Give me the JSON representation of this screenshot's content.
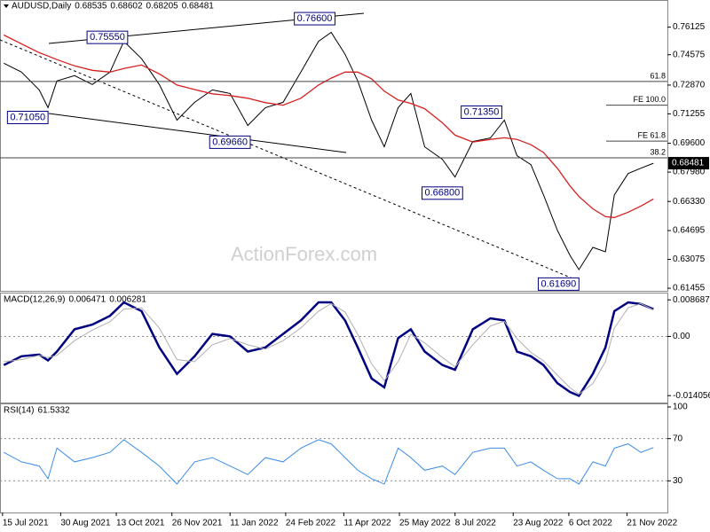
{
  "chart_data": [
    {
      "type": "line",
      "title": "AUDUSD,Daily",
      "open": 0.68535,
      "high": 0.68602,
      "low": 0.68205,
      "close": 0.68481,
      "watermark": "ActionForex.com",
      "x": [
        "2021-07-16",
        "2021-07-30",
        "2021-08-13",
        "2021-08-20",
        "2021-08-27",
        "2021-09-10",
        "2021-09-24",
        "2021-10-08",
        "2021-10-19",
        "2021-11-02",
        "2021-11-16",
        "2021-11-30",
        "2021-12-14",
        "2021-12-28",
        "2022-01-11",
        "2022-01-25",
        "2022-02-08",
        "2022-02-22",
        "2022-03-08",
        "2022-03-22",
        "2022-04-01",
        "2022-04-12",
        "2022-04-22",
        "2022-05-03",
        "2022-05-13",
        "2022-05-24",
        "2022-06-03",
        "2022-06-14",
        "2022-06-28",
        "2022-07-08",
        "2022-07-22",
        "2022-08-05",
        "2022-08-16",
        "2022-08-26",
        "2022-09-06",
        "2022-09-16",
        "2022-09-27",
        "2022-10-07",
        "2022-10-14",
        "2022-10-25",
        "2022-11-04",
        "2022-11-11",
        "2022-11-22",
        "2022-12-02",
        "2022-12-12"
      ],
      "xlim": [
        "2021-07-13",
        "2022-12-23"
      ],
      "xticks": [
        "15 Jul 2021",
        "30 Aug 2021",
        "13 Oct 2021",
        "26 Nov 2021",
        "11 Jan 2022",
        "24 Feb 2022",
        "11 Apr 2022",
        "25 May 2022",
        "8 Jul 2022",
        "23 Aug 2022",
        "6 Oct 2022",
        "21 Nov 2022"
      ],
      "ylim": [
        0.6131,
        0.7755
      ],
      "yticks": [
        0.76125,
        0.74575,
        {
          "value": 0.7287,
          "label": "0.72870"
        },
        0.71255,
        {
          "value": 0.696,
          "label": "0.69600"
        },
        {
          "value": 0.6798,
          "label": "0.67980"
        },
        {
          "value": 0.6633,
          "label": "0.66330"
        },
        0.64695,
        0.63075,
        0.61455
      ],
      "series": [
        {
          "color": "#000000",
          "values": [
            0.741,
            0.736,
            0.726,
            0.716,
            0.731,
            0.734,
            0.729,
            0.736,
            0.7533,
            0.7435,
            0.729,
            0.709,
            0.719,
            0.726,
            0.724,
            0.706,
            0.716,
            0.719,
            0.736,
            0.7533,
            0.7583,
            0.746,
            0.731,
            0.709,
            0.694,
            0.716,
            0.724,
            0.694,
            0.687,
            0.677,
            0.697,
            0.699,
            0.709,
            0.689,
            0.684,
            0.667,
            0.647,
            0.633,
            0.625,
            0.6375,
            0.635,
            0.667,
            0.679,
            0.682,
            0.68481
          ]
        },
        {
          "color": "#d42020",
          "values": [
            0.7568,
            0.7519,
            0.7469,
            0.745,
            0.743,
            0.7395,
            0.737,
            0.736,
            0.738,
            0.74,
            0.735,
            0.7287,
            0.7262,
            0.7238,
            0.7228,
            0.7213,
            0.7188,
            0.7174,
            0.7213,
            0.7287,
            0.7326,
            0.736,
            0.736,
            0.7322,
            0.7253,
            0.7203,
            0.7184,
            0.7154,
            0.7075,
            0.7006,
            0.6967,
            0.6982,
            0.6991,
            0.6982,
            0.6952,
            0.6908,
            0.6819,
            0.672,
            0.6661,
            0.6592,
            0.6548,
            0.6543,
            0.6573,
            0.6607,
            0.6647
          ]
        }
      ],
      "annotations": [
        {
          "label": "0.75550",
          "x": "2021-10-22",
          "value": 0.7555
        },
        {
          "label": "0.76600",
          "x": "2022-04-04",
          "value": 0.766
        },
        {
          "label": "0.71050",
          "x": "2021-08-20",
          "value": 0.7105
        },
        {
          "label": "0.69660",
          "x": "2022-01-27",
          "value": 0.6966
        },
        {
          "label": "0.66800",
          "x": "2022-07-14",
          "value": 0.668
        },
        {
          "label": "0.71350",
          "x": "2022-08-14",
          "value": 0.7135
        },
        {
          "label": "0.61690",
          "x": "2022-10-14",
          "value": 0.6169
        }
      ],
      "fib_levels": [
        {
          "label": "61.8",
          "value": 0.7307
        },
        {
          "label": "38.2",
          "value": 0.6878
        }
      ],
      "fe_levels": [
        {
          "label": "FE 100.0",
          "value": 0.7174
        },
        {
          "label": "FE 61.8",
          "value": 0.6972
        }
      ]
    },
    {
      "type": "line",
      "title": "MACD(12,26,9)",
      "macd_value": 0.006471,
      "signal_value": 0.006281,
      "ylim": [
        -0.0157,
        0.0102
      ],
      "yticks": [
        0.008687,
        {
          "value": 0,
          "label": "0.00"
        },
        -0.014056
      ],
      "dotted_lines": [
        0
      ],
      "series": [
        {
          "color": "#000080",
          "values": [
            -0.0068,
            -0.0047,
            -0.0043,
            -0.0057,
            -0.0036,
            0.0017,
            0.0028,
            0.0049,
            0.0081,
            0.006,
            -0.0026,
            -0.0089,
            -0.0047,
            0.0006,
            0,
            -0.0036,
            -0.0026,
            0.0006,
            0.0038,
            0.0081,
            0.0081,
            0.0038,
            -0.0026,
            -0.01,
            -0.0121,
            -0.0004,
            0.0017,
            -0.0036,
            -0.0068,
            -0.0079,
            0.0017,
            0.0043,
            0.0038,
            -0.0036,
            -0.0047,
            -0.0068,
            -0.0111,
            -0.0132,
            -0.0141,
            -0.0089,
            -0.0026,
            0.006,
            0.0081,
            0.0077,
            0.006471
          ]
        },
        {
          "color": "#b0b0b0",
          "values": [
            -0.006,
            -0.0055,
            -0.0045,
            -0.005,
            -0.0045,
            -0.001,
            0.0015,
            0.0035,
            0.0065,
            0.0068,
            0.002,
            -0.0055,
            -0.006,
            -0.002,
            -0.0005,
            -0.002,
            -0.003,
            -0.001,
            0.002,
            0.006,
            0.0078,
            0.0058,
            0.0005,
            -0.0065,
            -0.0105,
            -0.006,
            0.0005,
            -0.0015,
            -0.005,
            -0.0072,
            -0.002,
            0.0025,
            0.0036,
            -0.0005,
            -0.0038,
            -0.0058,
            -0.0092,
            -0.0122,
            -0.0137,
            -0.0112,
            -0.006,
            0.002,
            0.0068,
            0.0078,
            0.006281
          ]
        }
      ]
    },
    {
      "type": "line",
      "title": "RSI(14)",
      "rsi_value": 61.5332,
      "ylim": [
        0,
        102.5
      ],
      "yticks": [
        100,
        70,
        30
      ],
      "dotted_lines": [
        70,
        30
      ],
      "series": [
        {
          "color": "#3c8ce6",
          "values": [
            57,
            48,
            44,
            32,
            61,
            48,
            52,
            57,
            69,
            57,
            44,
            27,
            48,
            52,
            44,
            36,
            52,
            48,
            61,
            69,
            65,
            52,
            40,
            32,
            27,
            61,
            52,
            40,
            44,
            36,
            57,
            61,
            61,
            44,
            48,
            40,
            32,
            32,
            27,
            48,
            44,
            61,
            65,
            57,
            61.5332
          ]
        }
      ]
    }
  ]
}
